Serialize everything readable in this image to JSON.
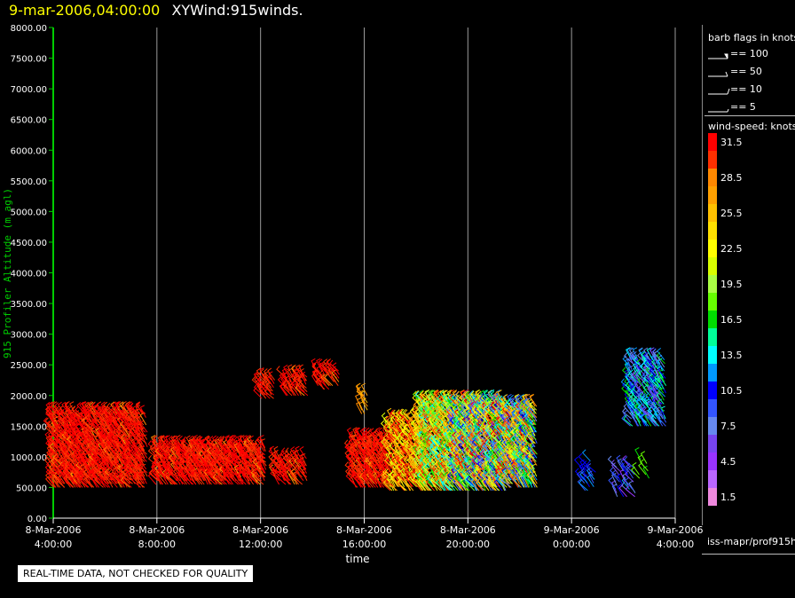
{
  "header": {
    "timestamp": "9-mar-2006,04:00:00",
    "title": "XYWind:915winds."
  },
  "colors": {
    "background": "#000000",
    "axis_y": "#00cc00",
    "axis_x": "#ffffff",
    "gridline": "#9a9a9a",
    "timestamp": "#ffff00"
  },
  "chart_data": {
    "type": "scatter",
    "xlabel": "time",
    "ylabel": "915 Profiler Altitude (m agl)",
    "ylim": [
      0,
      8000
    ],
    "y_ticks": [
      "0.00",
      "500.00",
      "1000.00",
      "1500.00",
      "2000.00",
      "2500.00",
      "3000.00",
      "3500.00",
      "4000.00",
      "4500.00",
      "5000.00",
      "5500.00",
      "6000.00",
      "6500.00",
      "7000.00",
      "7500.00",
      "8000.00"
    ],
    "x_range_hours": [
      4,
      28
    ],
    "x_ticks": [
      {
        "date": "8-Mar-2006",
        "time": "4:00:00"
      },
      {
        "date": "8-Mar-2006",
        "time": "8:00:00"
      },
      {
        "date": "8-Mar-2006",
        "time": "12:00:00"
      },
      {
        "date": "8-Mar-2006",
        "time": "16:00:00"
      },
      {
        "date": "8-Mar-2006",
        "time": "20:00:00"
      },
      {
        "date": "9-Mar-2006",
        "time": "0:00:00"
      },
      {
        "date": "9-Mar-2006",
        "time": "4:00:00"
      }
    ],
    "grid": "vertical",
    "series": [
      {
        "hours": [
          4.0,
          7.6
        ],
        "alt_range": [
          500,
          1700
        ],
        "speed": [
          29,
          33
        ],
        "every_min": 4
      },
      {
        "hours": [
          8.0,
          12.2
        ],
        "alt_range": [
          550,
          1200
        ],
        "speed": [
          29,
          33
        ],
        "every_min": 4
      },
      {
        "hours": [
          12.6,
          13.8
        ],
        "alt_range": [
          550,
          1000
        ],
        "speed": [
          29,
          33
        ],
        "every_min": 6
      },
      {
        "hours": [
          12.0,
          12.5
        ],
        "alt_range": [
          1950,
          2300
        ],
        "speed": [
          29,
          33
        ],
        "every_min": 6
      },
      {
        "hours": [
          13.0,
          13.8
        ],
        "alt_range": [
          2000,
          2350
        ],
        "speed": [
          29,
          33
        ],
        "every_min": 6
      },
      {
        "hours": [
          14.2,
          15.0
        ],
        "alt_range": [
          2100,
          2400
        ],
        "speed": [
          29,
          33
        ],
        "every_min": 6
      },
      {
        "hours": [
          15.9,
          16.1
        ],
        "alt_range": [
          1700,
          2000
        ],
        "speed": [
          26,
          29
        ],
        "every_min": 6
      },
      {
        "hours": [
          15.6,
          17.0
        ],
        "alt_range": [
          500,
          1300
        ],
        "speed": [
          29,
          33
        ],
        "every_min": 4
      },
      {
        "hours": [
          17.0,
          18.2
        ],
        "alt_range": [
          450,
          1600
        ],
        "speed": [
          21,
          33
        ],
        "every_min": 4
      },
      {
        "hours": [
          18.2,
          19.5
        ],
        "alt_range": [
          450,
          1900
        ],
        "speed": [
          13,
          31
        ],
        "every_min": 3
      },
      {
        "hours": [
          19.5,
          21.5
        ],
        "alt_range": [
          450,
          1900
        ],
        "speed": [
          6,
          33
        ],
        "every_min": 3
      },
      {
        "hours": [
          21.5,
          22.7
        ],
        "alt_range": [
          500,
          1850
        ],
        "speed": [
          6,
          31
        ],
        "every_min": 3
      },
      {
        "hours": [
          24.5,
          25.0
        ],
        "alt_range": [
          450,
          950
        ],
        "speed": [
          8,
          12
        ],
        "every_min": 12
      },
      {
        "hours": [
          25.8,
          26.5
        ],
        "alt_range": [
          350,
          850
        ],
        "speed": [
          4,
          12
        ],
        "every_min": 12
      },
      {
        "hours": [
          26.7,
          27.0
        ],
        "alt_range": [
          650,
          950
        ],
        "speed": [
          17,
          20
        ],
        "every_min": 12
      },
      {
        "hours": [
          26.3,
          27.7
        ],
        "alt_range": [
          1500,
          2600
        ],
        "speed": [
          6,
          17
        ],
        "every_min": 6
      }
    ]
  },
  "legend": {
    "barb_title": "barb flags in knots",
    "barbs": [
      {
        "label": "== 100",
        "kind": "flag"
      },
      {
        "label": "== 50",
        "kind": "pennant"
      },
      {
        "label": "== 10",
        "kind": "full"
      },
      {
        "label": "== 5",
        "kind": "half"
      }
    ],
    "speed_title": "wind-speed: knots",
    "speed_bins": [
      {
        "label": "31.5",
        "color": "#ff0000"
      },
      {
        "label": "",
        "color": "#ff3000"
      },
      {
        "label": "28.5",
        "color": "#ff8800"
      },
      {
        "label": "",
        "color": "#ffa000"
      },
      {
        "label": "25.5",
        "color": "#ffc000"
      },
      {
        "label": "",
        "color": "#ffe000"
      },
      {
        "label": "22.5",
        "color": "#ffff00"
      },
      {
        "label": "",
        "color": "#d8ff00"
      },
      {
        "label": "19.5",
        "color": "#aaff44"
      },
      {
        "label": "",
        "color": "#66ff00"
      },
      {
        "label": "16.5",
        "color": "#00dd00"
      },
      {
        "label": "",
        "color": "#00ff99"
      },
      {
        "label": "13.5",
        "color": "#00ffff"
      },
      {
        "label": "",
        "color": "#0099ff"
      },
      {
        "label": "10.5",
        "color": "#0000ff"
      },
      {
        "label": "",
        "color": "#3355ff"
      },
      {
        "label": "7.5",
        "color": "#6688ee"
      },
      {
        "label": "",
        "color": "#7744ee"
      },
      {
        "label": "4.5",
        "color": "#9933ff"
      },
      {
        "label": "",
        "color": "#bb66ff"
      },
      {
        "label": "1.5",
        "color": "#ee88dd"
      }
    ]
  },
  "footer": {
    "source": "iss-mapr/prof915h",
    "note": "REAL-TIME DATA, NOT CHECKED FOR QUALITY"
  }
}
